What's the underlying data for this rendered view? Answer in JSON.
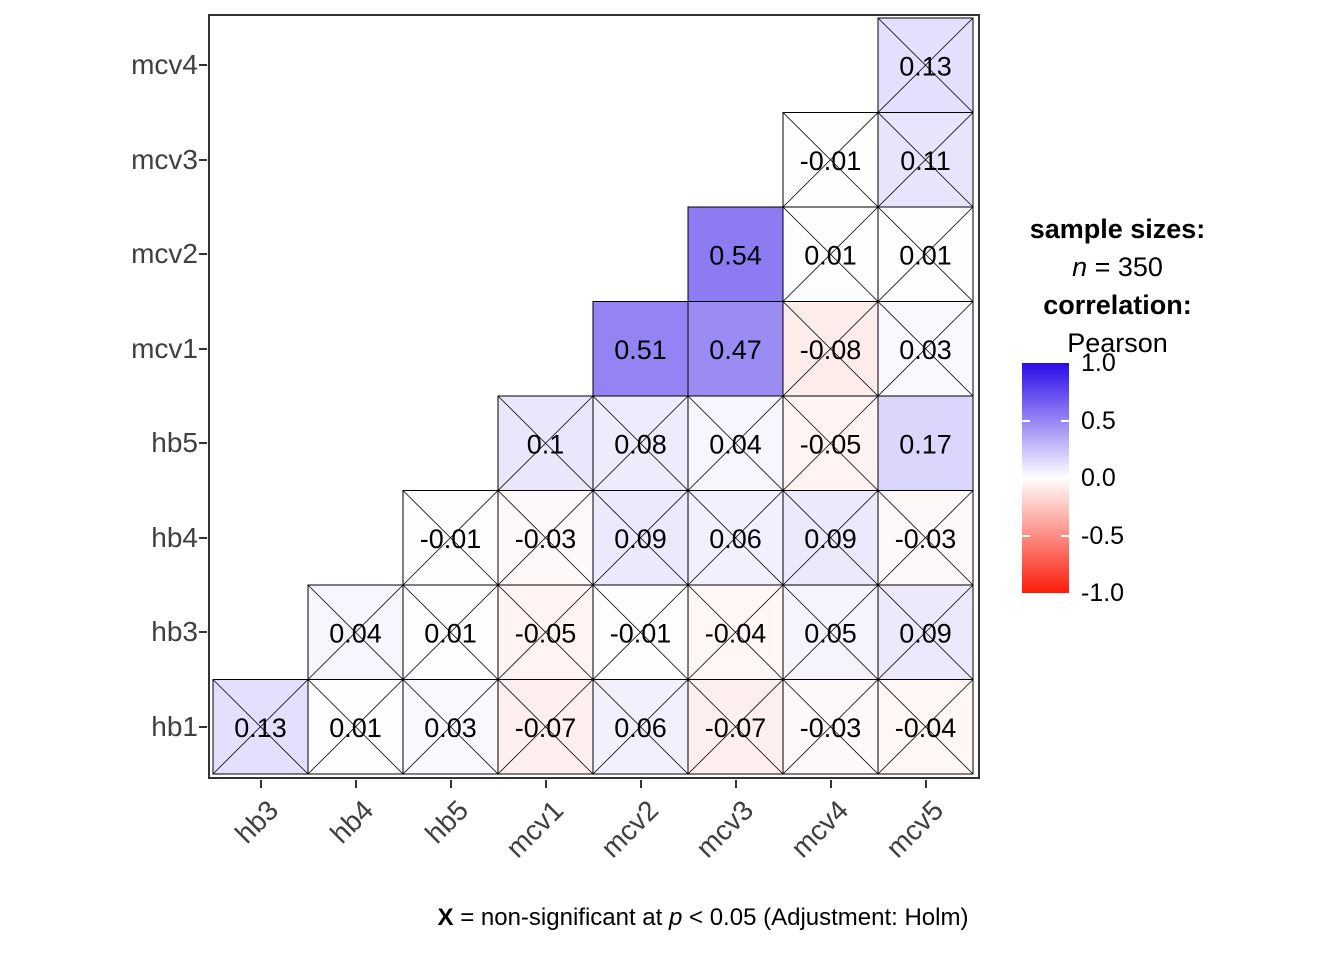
{
  "legend": {
    "sample_sizes_title": "sample sizes:",
    "n_symbol": "n",
    "n_value": " = 350",
    "correlation_title": "correlation:",
    "correlation_type": "Pearson"
  },
  "caption": {
    "x_symbol": "X",
    "part1": " = non-significant at ",
    "p_symbol": "p",
    "part2": " < 0.05 (Adjustment: Holm)"
  },
  "chart_data": {
    "type": "heatmap",
    "subtype": "correlation-matrix-lower-triangle",
    "x_categories": [
      "hb3",
      "hb4",
      "hb5",
      "mcv1",
      "mcv2",
      "mcv3",
      "mcv4",
      "mcv5"
    ],
    "y_categories_top_to_bottom": [
      "mcv4",
      "mcv3",
      "mcv2",
      "mcv1",
      "hb5",
      "hb4",
      "hb3",
      "hb1"
    ],
    "colorscale": {
      "high_color": "#2B0BE8",
      "mid_color": "#FFFFFF",
      "low_color": "#FA1B0A",
      "domain": [
        -1,
        1
      ],
      "tick_labels": [
        "1.0",
        "0.5",
        "0.0",
        "-0.5",
        "-1.0"
      ],
      "legend_position": "right"
    },
    "x_marks_mean": "non-significant correlation",
    "cells": [
      {
        "row": "mcv4",
        "col": "mcv5",
        "value": 0.13,
        "label": "0.13",
        "significant": false
      },
      {
        "row": "mcv3",
        "col": "mcv4",
        "value": -0.01,
        "label": "-0.01",
        "significant": false
      },
      {
        "row": "mcv3",
        "col": "mcv5",
        "value": 0.11,
        "label": "0.11",
        "significant": false
      },
      {
        "row": "mcv2",
        "col": "mcv3",
        "value": 0.54,
        "label": "0.54",
        "significant": true
      },
      {
        "row": "mcv2",
        "col": "mcv4",
        "value": 0.01,
        "label": "0.01",
        "significant": false
      },
      {
        "row": "mcv2",
        "col": "mcv5",
        "value": 0.01,
        "label": "0.01",
        "significant": false
      },
      {
        "row": "mcv1",
        "col": "mcv2",
        "value": 0.51,
        "label": "0.51",
        "significant": true
      },
      {
        "row": "mcv1",
        "col": "mcv3",
        "value": 0.47,
        "label": "0.47",
        "significant": true
      },
      {
        "row": "mcv1",
        "col": "mcv4",
        "value": -0.08,
        "label": "-0.08",
        "significant": false
      },
      {
        "row": "mcv1",
        "col": "mcv5",
        "value": 0.03,
        "label": "0.03",
        "significant": false
      },
      {
        "row": "hb5",
        "col": "mcv1",
        "value": 0.1,
        "label": "0.1",
        "significant": false
      },
      {
        "row": "hb5",
        "col": "mcv2",
        "value": 0.08,
        "label": "0.08",
        "significant": false
      },
      {
        "row": "hb5",
        "col": "mcv3",
        "value": 0.04,
        "label": "0.04",
        "significant": false
      },
      {
        "row": "hb5",
        "col": "mcv4",
        "value": -0.05,
        "label": "-0.05",
        "significant": false
      },
      {
        "row": "hb5",
        "col": "mcv5",
        "value": 0.17,
        "label": "0.17",
        "significant": true
      },
      {
        "row": "hb4",
        "col": "hb5",
        "value": -0.01,
        "label": "-0.01",
        "significant": false
      },
      {
        "row": "hb4",
        "col": "mcv1",
        "value": -0.03,
        "label": "-0.03",
        "significant": false
      },
      {
        "row": "hb4",
        "col": "mcv2",
        "value": 0.09,
        "label": "0.09",
        "significant": false
      },
      {
        "row": "hb4",
        "col": "mcv3",
        "value": 0.06,
        "label": "0.06",
        "significant": false
      },
      {
        "row": "hb4",
        "col": "mcv4",
        "value": 0.09,
        "label": "0.09",
        "significant": false
      },
      {
        "row": "hb4",
        "col": "mcv5",
        "value": -0.03,
        "label": "-0.03",
        "significant": false
      },
      {
        "row": "hb3",
        "col": "hb4",
        "value": 0.04,
        "label": "0.04",
        "significant": false
      },
      {
        "row": "hb3",
        "col": "hb5",
        "value": 0.01,
        "label": "0.01",
        "significant": false
      },
      {
        "row": "hb3",
        "col": "mcv1",
        "value": -0.05,
        "label": "-0.05",
        "significant": false
      },
      {
        "row": "hb3",
        "col": "mcv2",
        "value": -0.01,
        "label": "-0.01",
        "significant": false
      },
      {
        "row": "hb3",
        "col": "mcv3",
        "value": -0.04,
        "label": "-0.04",
        "significant": false
      },
      {
        "row": "hb3",
        "col": "mcv4",
        "value": 0.05,
        "label": "0.05",
        "significant": false
      },
      {
        "row": "hb3",
        "col": "mcv5",
        "value": 0.09,
        "label": "0.09",
        "significant": false
      },
      {
        "row": "hb1",
        "col": "hb3",
        "value": 0.13,
        "label": "0.13",
        "significant": false
      },
      {
        "row": "hb1",
        "col": "hb4",
        "value": 0.01,
        "label": "0.01",
        "significant": false
      },
      {
        "row": "hb1",
        "col": "hb5",
        "value": 0.03,
        "label": "0.03",
        "significant": false
      },
      {
        "row": "hb1",
        "col": "mcv1",
        "value": -0.07,
        "label": "-0.07",
        "significant": false
      },
      {
        "row": "hb1",
        "col": "mcv2",
        "value": 0.06,
        "label": "0.06",
        "significant": false
      },
      {
        "row": "hb1",
        "col": "mcv3",
        "value": -0.07,
        "label": "-0.07",
        "significant": false
      },
      {
        "row": "hb1",
        "col": "mcv4",
        "value": -0.03,
        "label": "-0.03",
        "significant": false
      },
      {
        "row": "hb1",
        "col": "mcv5",
        "value": -0.04,
        "label": "-0.04",
        "significant": false
      }
    ]
  }
}
